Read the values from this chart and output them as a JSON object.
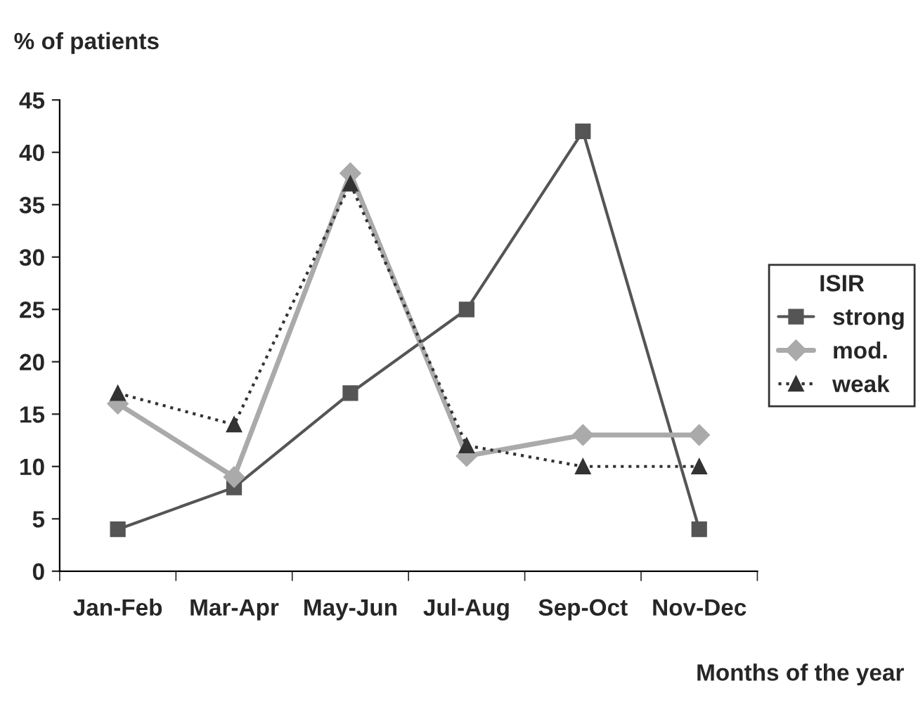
{
  "chart_data": {
    "type": "line",
    "ylabel": "% of patients",
    "xlabel": "Months of the year",
    "legend_title": "ISIR",
    "legend": "right",
    "categories": [
      "Jan-Feb",
      "Mar-Apr",
      "May-Jun",
      "Jul-Aug",
      "Sep-Oct",
      "Nov-Dec"
    ],
    "ylim": [
      0,
      45
    ],
    "yticks": [
      0,
      5,
      10,
      15,
      20,
      25,
      30,
      35,
      40,
      45
    ],
    "grid": false,
    "series": [
      {
        "name": "strong",
        "color": "#555555",
        "marker": "square",
        "line_style": "solid",
        "values": [
          4,
          8,
          17,
          25,
          42,
          4
        ]
      },
      {
        "name": "mod.",
        "color": "#aaaaaa",
        "marker": "diamond",
        "line_style": "solid",
        "values": [
          16,
          9,
          38,
          11,
          13,
          13
        ]
      },
      {
        "name": "weak",
        "color": "#333333",
        "marker": "triangle",
        "line_style": "dotted",
        "values": [
          17,
          14,
          37,
          12,
          10,
          10
        ]
      }
    ]
  }
}
